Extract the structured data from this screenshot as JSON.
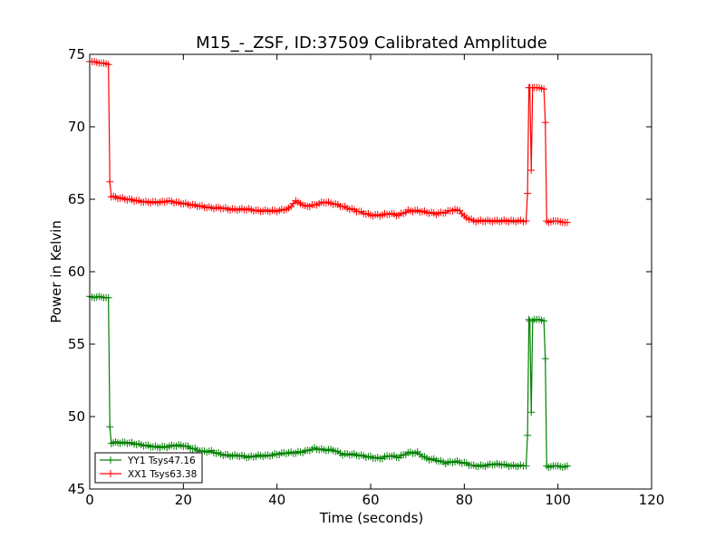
{
  "chart_data": {
    "type": "line",
    "title": "M15_-_ZSF, ID:37509 Calibrated Amplitude",
    "xlabel": "Time (seconds)",
    "ylabel": "Power in Kelvin",
    "xlim": [
      0,
      120
    ],
    "ylim": [
      45,
      75
    ],
    "xticks": [
      0,
      20,
      40,
      60,
      80,
      100,
      120
    ],
    "yticks": [
      45,
      50,
      55,
      60,
      65,
      70,
      75
    ],
    "grid": false,
    "legend_position": "lower-left",
    "series": [
      {
        "name": "YY1 Tsys47.16",
        "color": "#008000",
        "marker": "+",
        "points": [
          [
            0,
            58.3
          ],
          [
            1,
            58.2
          ],
          [
            2,
            58.3
          ],
          [
            3,
            58.2
          ],
          [
            4,
            58.2
          ],
          [
            4.3,
            49.3
          ],
          [
            4.6,
            48.2
          ],
          [
            6,
            48.2
          ],
          [
            8,
            48.2
          ],
          [
            10,
            48.1
          ],
          [
            12,
            48.0
          ],
          [
            14,
            47.9
          ],
          [
            16,
            47.9
          ],
          [
            18,
            48.0
          ],
          [
            20,
            48.0
          ],
          [
            22,
            47.8
          ],
          [
            24,
            47.6
          ],
          [
            26,
            47.6
          ],
          [
            28,
            47.4
          ],
          [
            30,
            47.3
          ],
          [
            32,
            47.3
          ],
          [
            34,
            47.2
          ],
          [
            36,
            47.3
          ],
          [
            38,
            47.3
          ],
          [
            40,
            47.4
          ],
          [
            42,
            47.5
          ],
          [
            44,
            47.5
          ],
          [
            46,
            47.6
          ],
          [
            48,
            47.8
          ],
          [
            50,
            47.7
          ],
          [
            52,
            47.7
          ],
          [
            54,
            47.4
          ],
          [
            56,
            47.4
          ],
          [
            58,
            47.3
          ],
          [
            60,
            47.2
          ],
          [
            62,
            47.1
          ],
          [
            64,
            47.3
          ],
          [
            66,
            47.2
          ],
          [
            68,
            47.5
          ],
          [
            70,
            47.5
          ],
          [
            72,
            47.1
          ],
          [
            74,
            47.0
          ],
          [
            76,
            46.8
          ],
          [
            78,
            46.9
          ],
          [
            80,
            46.8
          ],
          [
            82,
            46.6
          ],
          [
            84,
            46.6
          ],
          [
            86,
            46.7
          ],
          [
            88,
            46.7
          ],
          [
            90,
            46.6
          ],
          [
            92,
            46.6
          ],
          [
            93.2,
            46.6
          ],
          [
            93.5,
            48.7
          ],
          [
            93.8,
            56.7
          ],
          [
            94.0,
            56.6
          ],
          [
            94.3,
            50.3
          ],
          [
            94.6,
            56.6
          ],
          [
            95,
            56.7
          ],
          [
            96,
            56.7
          ],
          [
            97,
            56.6
          ],
          [
            97.3,
            54.0
          ],
          [
            97.6,
            46.6
          ],
          [
            98,
            46.5
          ],
          [
            99,
            46.6
          ],
          [
            100,
            46.6
          ],
          [
            101,
            46.5
          ],
          [
            102,
            46.6
          ]
        ]
      },
      {
        "name": "XX1 Tsys63.38",
        "color": "#ff0000",
        "marker": "+",
        "points": [
          [
            0,
            74.5
          ],
          [
            1,
            74.5
          ],
          [
            2,
            74.4
          ],
          [
            3,
            74.4
          ],
          [
            4,
            74.3
          ],
          [
            4.3,
            66.2
          ],
          [
            4.6,
            65.2
          ],
          [
            6,
            65.1
          ],
          [
            8,
            65.0
          ],
          [
            10,
            64.9
          ],
          [
            12,
            64.8
          ],
          [
            14,
            64.8
          ],
          [
            16,
            64.8
          ],
          [
            17,
            64.9
          ],
          [
            18,
            64.8
          ],
          [
            20,
            64.7
          ],
          [
            22,
            64.6
          ],
          [
            24,
            64.5
          ],
          [
            26,
            64.4
          ],
          [
            28,
            64.4
          ],
          [
            30,
            64.3
          ],
          [
            32,
            64.3
          ],
          [
            34,
            64.3
          ],
          [
            36,
            64.2
          ],
          [
            38,
            64.2
          ],
          [
            40,
            64.2
          ],
          [
            42,
            64.3
          ],
          [
            43,
            64.5
          ],
          [
            44,
            64.9
          ],
          [
            45,
            64.7
          ],
          [
            46,
            64.5
          ],
          [
            48,
            64.6
          ],
          [
            50,
            64.8
          ],
          [
            52,
            64.7
          ],
          [
            54,
            64.5
          ],
          [
            56,
            64.3
          ],
          [
            58,
            64.1
          ],
          [
            60,
            63.9
          ],
          [
            62,
            63.9
          ],
          [
            64,
            64.0
          ],
          [
            66,
            63.9
          ],
          [
            68,
            64.2
          ],
          [
            70,
            64.2
          ],
          [
            72,
            64.1
          ],
          [
            74,
            64.0
          ],
          [
            76,
            64.1
          ],
          [
            78,
            64.3
          ],
          [
            79,
            64.2
          ],
          [
            80,
            63.8
          ],
          [
            82,
            63.5
          ],
          [
            84,
            63.5
          ],
          [
            86,
            63.5
          ],
          [
            88,
            63.5
          ],
          [
            90,
            63.5
          ],
          [
            92,
            63.5
          ],
          [
            93.2,
            63.5
          ],
          [
            93.5,
            65.4
          ],
          [
            93.8,
            72.7
          ],
          [
            94.0,
            72.7
          ],
          [
            94.3,
            67.0
          ],
          [
            94.6,
            72.7
          ],
          [
            95,
            72.7
          ],
          [
            96,
            72.7
          ],
          [
            97,
            72.6
          ],
          [
            97.3,
            70.3
          ],
          [
            97.6,
            63.5
          ],
          [
            98,
            63.4
          ],
          [
            99,
            63.5
          ],
          [
            100,
            63.5
          ],
          [
            101,
            63.4
          ],
          [
            102,
            63.4
          ]
        ]
      }
    ]
  }
}
